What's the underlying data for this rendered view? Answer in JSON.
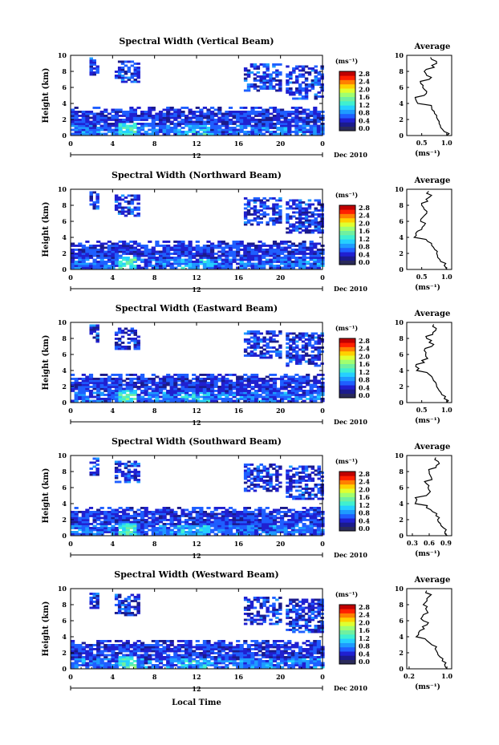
{
  "colors": {
    "colormap": [
      "#2a2a5a",
      "#1b1b8c",
      "#2020d0",
      "#1f5fff",
      "#1e9bff",
      "#25d0ff",
      "#40f0d0",
      "#70f0a0",
      "#a0ff70",
      "#e0ff30",
      "#ffd000",
      "#ff8000",
      "#ff2000",
      "#c00000"
    ]
  },
  "shared": {
    "xticks": [
      "0",
      "4",
      "8",
      "12",
      "16",
      "20",
      "0"
    ],
    "date_label": "12",
    "month_label": "Dec 2010",
    "ylabel": "Height (km)",
    "yticks": [
      "0",
      "2",
      "4",
      "6",
      "8",
      "10"
    ],
    "colorbar_title": "(ms⁻¹)",
    "colorbar_ticks": [
      "0.0",
      "0.4",
      "0.8",
      "1.2",
      "1.6",
      "2.0",
      "2.4",
      "2.8"
    ],
    "avg_title": "Average",
    "avg_unit": "(ms⁻¹)",
    "xlabel": "Local Time"
  },
  "chart_data": [
    {
      "type": "heatmap",
      "title": "Spectral Width (Vertical Beam)",
      "xlabel": "Local Time",
      "ylabel": "Height (km)",
      "xlim": [
        0,
        24
      ],
      "ylim": [
        0,
        10
      ],
      "colorbar_range": [
        0.0,
        2.8
      ],
      "profile": {
        "title": "Average",
        "xticks": [
          "0.5",
          "1.0"
        ],
        "xlim": [
          0.2,
          1.1
        ],
        "heights": [
          0,
          0.5,
          1,
          1.5,
          2,
          2.5,
          3,
          3.5,
          4,
          4.5,
          5,
          5.5,
          6,
          6.5,
          7,
          7.5,
          8,
          8.5,
          9,
          9.5
        ],
        "values": [
          1.0,
          0.95,
          0.88,
          0.85,
          0.82,
          0.8,
          0.75,
          0.7,
          0.42,
          0.38,
          0.55,
          0.6,
          0.52,
          0.48,
          0.65,
          0.6,
          0.55,
          0.75,
          0.8,
          0.7
        ]
      }
    },
    {
      "type": "heatmap",
      "title": "Spectral Width (Northward Beam)",
      "xlabel": "Local Time",
      "ylabel": "Height (km)",
      "xlim": [
        0,
        24
      ],
      "ylim": [
        0,
        10
      ],
      "colorbar_range": [
        0.0,
        2.8
      ],
      "profile": {
        "title": "Average",
        "xticks": [
          "0.5",
          "1.0"
        ],
        "xlim": [
          0.2,
          1.1
        ],
        "heights": [
          0,
          0.5,
          1,
          1.5,
          2,
          2.5,
          3,
          3.5,
          4,
          4.5,
          5,
          5.5,
          6,
          6.5,
          7,
          7.5,
          8,
          8.5,
          9,
          9.5
        ],
        "values": [
          1.0,
          0.95,
          0.88,
          0.82,
          0.8,
          0.76,
          0.7,
          0.62,
          0.35,
          0.38,
          0.5,
          0.55,
          0.48,
          0.52,
          0.6,
          0.55,
          0.5,
          0.62,
          0.65,
          0.6
        ]
      }
    },
    {
      "type": "heatmap",
      "title": "Spectral Width (Eastward Beam)",
      "xlabel": "Local Time",
      "ylabel": "Height (km)",
      "xlim": [
        0,
        24
      ],
      "ylim": [
        0,
        10
      ],
      "colorbar_range": [
        0.0,
        2.8
      ],
      "profile": {
        "title": "Average",
        "xticks": [
          "0.5",
          "1.0"
        ],
        "xlim": [
          0.2,
          1.1
        ],
        "heights": [
          0,
          0.5,
          1,
          1.5,
          2,
          2.5,
          3,
          3.5,
          4,
          4.5,
          5,
          5.5,
          6,
          6.5,
          7,
          7.5,
          8,
          8.5,
          9,
          9.5
        ],
        "values": [
          1.0,
          0.95,
          0.9,
          0.85,
          0.8,
          0.78,
          0.72,
          0.65,
          0.4,
          0.38,
          0.55,
          0.62,
          0.58,
          0.55,
          0.7,
          0.65,
          0.6,
          0.72,
          0.78,
          0.72
        ]
      }
    },
    {
      "type": "heatmap",
      "title": "Spectral Width (Southward Beam)",
      "xlabel": "Local Time",
      "ylabel": "Height (km)",
      "xlim": [
        0,
        24
      ],
      "ylim": [
        0,
        10
      ],
      "colorbar_range": [
        0.0,
        2.8
      ],
      "profile": {
        "title": "Average",
        "xticks": [
          "0.3",
          "0.6",
          "0.9"
        ],
        "xlim": [
          0.2,
          1.0
        ],
        "heights": [
          0,
          0.5,
          1,
          1.5,
          2,
          2.5,
          3,
          3.5,
          4,
          4.5,
          5,
          5.5,
          6,
          6.5,
          7,
          7.5,
          8,
          8.5,
          9,
          9.5
        ],
        "values": [
          0.92,
          0.88,
          0.85,
          0.8,
          0.75,
          0.72,
          0.66,
          0.55,
          0.35,
          0.38,
          0.55,
          0.62,
          0.58,
          0.55,
          0.65,
          0.62,
          0.6,
          0.72,
          0.78,
          0.7
        ]
      }
    },
    {
      "type": "heatmap",
      "title": "Spectral Width (Westward Beam)",
      "xlabel": "Local Time",
      "ylabel": "Height (km)",
      "xlim": [
        0,
        24
      ],
      "ylim": [
        0,
        10
      ],
      "colorbar_range": [
        0.0,
        2.8
      ],
      "profile": {
        "title": "Average",
        "xticks": [
          "0.2",
          "1.0"
        ],
        "xlim": [
          0.15,
          1.1
        ],
        "heights": [
          0,
          0.5,
          1,
          1.5,
          2,
          2.5,
          3,
          3.5,
          4,
          4.5,
          5,
          5.5,
          6,
          6.5,
          7,
          7.5,
          8,
          8.5,
          9,
          9.5
        ],
        "values": [
          1.0,
          0.95,
          0.9,
          0.85,
          0.8,
          0.75,
          0.68,
          0.58,
          0.35,
          0.4,
          0.52,
          0.58,
          0.5,
          0.48,
          0.6,
          0.55,
          0.5,
          0.58,
          0.62,
          0.55
        ]
      }
    }
  ]
}
